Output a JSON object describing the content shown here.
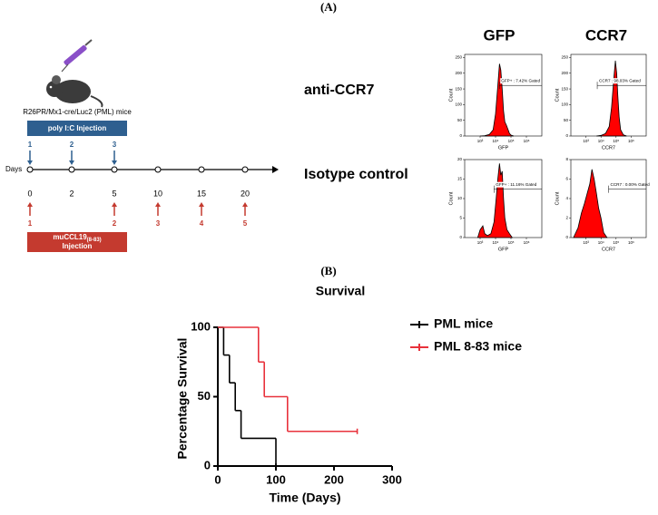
{
  "panel_labels": [
    "(A)",
    "(B)"
  ],
  "timeline": {
    "mouse_label": "R26PR/Mx1-cre/Luc2 (PML) mice",
    "poly_box": "poly I:C Injection",
    "poly_numbers": [
      "1",
      "2",
      "3"
    ],
    "axis_label": "Days",
    "days": [
      "0",
      "2",
      "5",
      "10",
      "15",
      "20"
    ],
    "ccl_numbers": [
      "1",
      "2",
      "3",
      "4",
      "5"
    ],
    "ccl_box": {
      "name": "muCCL19",
      "subscript": "(8-83)",
      "line2": "Injection"
    }
  },
  "flow": {
    "column_titles": [
      "GFP",
      "CCR7"
    ],
    "row_labels": [
      "anti-CCR7",
      "Isotype control"
    ]
  },
  "chart_data": [
    {
      "type": "step",
      "title": "Survival",
      "xlabel": "Time (Days)",
      "ylabel": "Percentage Survival",
      "xlim": [
        0,
        300
      ],
      "ylim": [
        0,
        100
      ],
      "xticks": [
        0,
        100,
        200,
        300
      ],
      "yticks": [
        0,
        50,
        100
      ],
      "legend": "right",
      "series": [
        {
          "name": "PML mice",
          "color": "#000000",
          "x": [
            0,
            10,
            20,
            30,
            40,
            100
          ],
          "values": [
            100,
            80,
            60,
            40,
            20,
            0
          ]
        },
        {
          "name": "PML 8-83 mice",
          "color": "#e8323c",
          "x": [
            0,
            70,
            80,
            120,
            240
          ],
          "values": [
            100,
            75,
            50,
            25,
            25
          ]
        }
      ]
    },
    {
      "type": "area",
      "log_x": true,
      "color": "#ff0000",
      "xlabel": "GFP",
      "ylabel": "Count",
      "gate_label": "GFP+ : 7.42% Gated",
      "xlim": [
        100,
        10000000
      ],
      "ylim": [
        0,
        260
      ],
      "xticks": [
        {
          "value": 1000,
          "label": "10³"
        },
        {
          "value": 10000,
          "label": "10⁴"
        },
        {
          "value": 100000,
          "label": "10⁵"
        },
        {
          "value": 1000000,
          "label": "10⁶"
        }
      ],
      "yticks": [
        0,
        50,
        100,
        150,
        200,
        250
      ],
      "x": [
        1000,
        2000,
        4000,
        7000,
        10000,
        14000,
        18000,
        22000,
        27000,
        33000,
        40000,
        50000,
        65000,
        80000,
        100000,
        150000
      ],
      "values": [
        0,
        1,
        5,
        20,
        70,
        160,
        230,
        210,
        150,
        80,
        45,
        35,
        20,
        8,
        3,
        0
      ]
    },
    {
      "type": "area",
      "log_x": true,
      "color": "#ff0000",
      "xlabel": "CCR7",
      "ylabel": "Count",
      "gate_label": "CCR7 : 98.03% Gated",
      "xlim": [
        100,
        10000000
      ],
      "ylim": [
        0,
        260
      ],
      "xticks": [
        {
          "value": 1000,
          "label": "10³"
        },
        {
          "value": 10000,
          "label": "10⁴"
        },
        {
          "value": 100000,
          "label": "10⁵"
        },
        {
          "value": 1000000,
          "label": "10⁶"
        }
      ],
      "yticks": [
        0,
        50,
        100,
        150,
        200,
        250
      ],
      "x": [
        5000,
        10000,
        20000,
        35000,
        50000,
        70000,
        90000,
        110000,
        130000,
        160000,
        200000,
        300000,
        500000
      ],
      "values": [
        0,
        2,
        8,
        30,
        90,
        180,
        240,
        200,
        130,
        60,
        20,
        4,
        0
      ]
    },
    {
      "type": "area",
      "log_x": true,
      "color": "#ff0000",
      "xlabel": "GFP",
      "ylabel": "Count",
      "gate_label": "GFP+ : 11.16% Gated",
      "xlim": [
        100,
        10000000
      ],
      "ylim": [
        0,
        20
      ],
      "xticks": [
        {
          "value": 1000,
          "label": "10³"
        },
        {
          "value": 10000,
          "label": "10⁴"
        },
        {
          "value": 100000,
          "label": "10⁵"
        },
        {
          "value": 1000000,
          "label": "10⁶"
        }
      ],
      "yticks": [
        0,
        5,
        10,
        15,
        20
      ],
      "x": [
        700,
        1000,
        1500,
        2000,
        3000,
        5000,
        8000,
        11000,
        14000,
        18000,
        22000,
        27000,
        33000,
        40000,
        55000,
        80000,
        120000
      ],
      "values": [
        0,
        2,
        3,
        1,
        0.5,
        1,
        4,
        10,
        15,
        19,
        16,
        17,
        10,
        5,
        2,
        1,
        0
      ]
    },
    {
      "type": "area",
      "log_x": true,
      "color": "#ff0000",
      "xlabel": "CCR7",
      "ylabel": "Count",
      "gate_label": "CCR7 : 0.00% Gated",
      "xlim": [
        100,
        10000000
      ],
      "ylim": [
        0,
        8
      ],
      "xticks": [
        {
          "value": 1000,
          "label": "10³"
        },
        {
          "value": 10000,
          "label": "10⁴"
        },
        {
          "value": 100000,
          "label": "10⁵"
        },
        {
          "value": 1000000,
          "label": "10⁶"
        }
      ],
      "yticks": [
        0,
        2,
        4,
        6,
        8
      ],
      "x": [
        150,
        300,
        500,
        800,
        1200,
        1800,
        2500,
        3500,
        5000,
        7000,
        10000,
        15000,
        25000
      ],
      "values": [
        0,
        1,
        2.5,
        3.5,
        4.5,
        5.5,
        7,
        6,
        4.5,
        3,
        2,
        0.5,
        0
      ]
    }
  ]
}
